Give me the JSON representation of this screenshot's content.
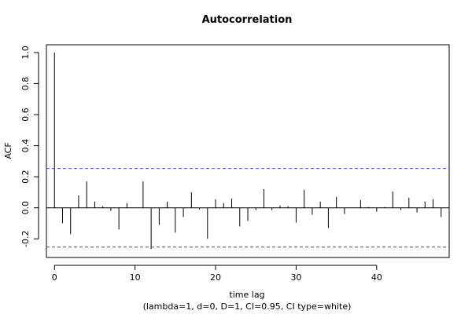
{
  "chart_data": {
    "type": "bar",
    "title": "Autocorrelation",
    "xlabel": "time lag",
    "ylabel": "ACF",
    "subtitle": "(lambda=1, d=0, D=1, CI=0.95, CI type=white)",
    "xlim": [
      -1,
      49
    ],
    "ylim": [
      -0.32,
      1.05
    ],
    "x_ticks": [
      0,
      10,
      20,
      30,
      40
    ],
    "y_ticks": [
      -0.2,
      0.0,
      0.2,
      0.4,
      0.6,
      0.8,
      1.0
    ],
    "y_tick_labels": [
      "-0.2",
      "0.0",
      "0.2",
      "0.4",
      "0.6",
      "0.8",
      "1.0"
    ],
    "ci_upper": 0.253,
    "ci_lower": -0.253,
    "colors": {
      "ci_upper": "#4d4dff",
      "ci_lower": "#555555",
      "bars": "#000000"
    },
    "x": [
      0,
      1,
      2,
      3,
      4,
      5,
      6,
      7,
      8,
      9,
      10,
      11,
      12,
      13,
      14,
      15,
      16,
      17,
      18,
      19,
      20,
      21,
      22,
      23,
      24,
      25,
      26,
      27,
      28,
      29,
      30,
      31,
      32,
      33,
      34,
      35,
      36,
      37,
      38,
      39,
      40,
      41,
      42,
      43,
      44,
      45,
      46,
      47,
      48
    ],
    "values": [
      1.0,
      -0.1,
      -0.17,
      0.08,
      0.17,
      0.04,
      0.01,
      -0.02,
      -0.14,
      0.03,
      0.0,
      0.17,
      -0.265,
      -0.11,
      0.04,
      -0.16,
      -0.06,
      0.1,
      -0.01,
      -0.2,
      0.055,
      0.03,
      0.06,
      -0.12,
      -0.085,
      -0.015,
      0.12,
      -0.015,
      0.015,
      0.01,
      -0.095,
      0.115,
      -0.045,
      0.04,
      -0.13,
      0.07,
      -0.04,
      0.0,
      0.05,
      0.005,
      -0.025,
      0.005,
      0.105,
      -0.015,
      0.065,
      -0.03,
      0.04,
      0.055,
      -0.06
    ]
  }
}
